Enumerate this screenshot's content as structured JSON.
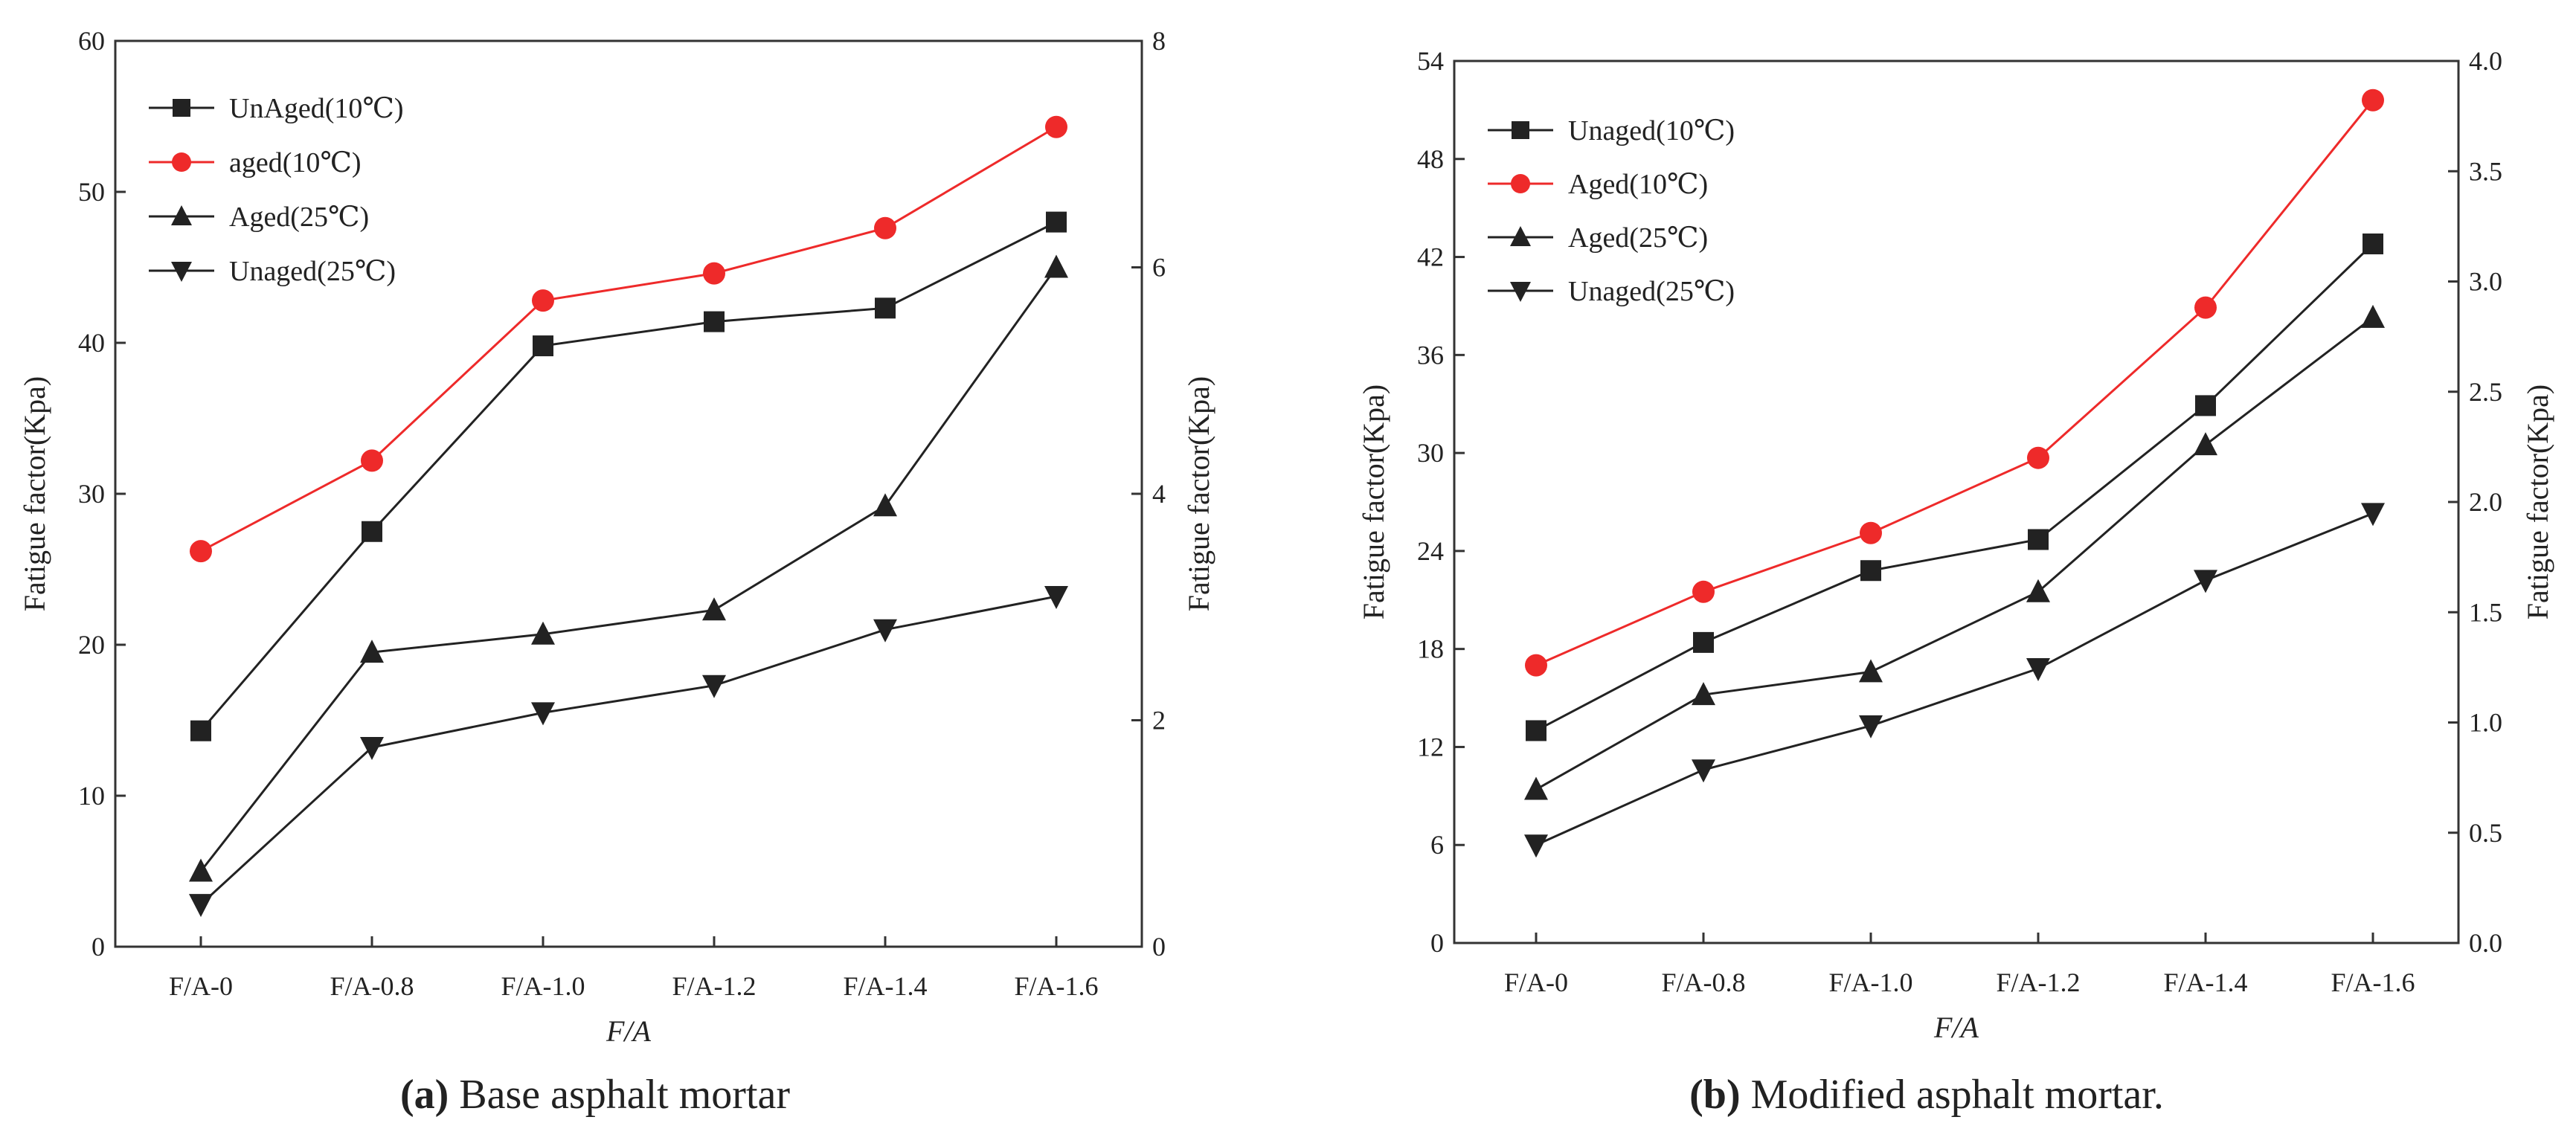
{
  "figure": {
    "colors": {
      "black": "#222222",
      "red": "#ee2a2a",
      "frame": "#333333"
    }
  },
  "chart_data": [
    {
      "type": "line",
      "panel": "a",
      "caption_letter": "(a)",
      "caption_text": " Base asphalt mortar",
      "categories": [
        "F/A-0",
        "F/A-0.8",
        "F/A-1.0",
        "F/A-1.2",
        "F/A-1.4",
        "F/A-1.6"
      ],
      "xlabel": "F/A",
      "ylabel": "Fatigue factor(Kpa)",
      "ylabel_right": "Fatigue factor(Kpa)",
      "ylim": [
        0,
        60
      ],
      "yticks": [
        "0",
        "10",
        "20",
        "30",
        "40",
        "50",
        "60"
      ],
      "ylim_right": [
        0,
        8
      ],
      "yticks_right": [
        "0",
        "2",
        "4",
        "6",
        "8"
      ],
      "legend_position": "top-left",
      "series": [
        {
          "name": "UnAged(10℃)",
          "marker": "square",
          "color": "#222222",
          "values": [
            14.3,
            27.5,
            39.8,
            41.4,
            42.3,
            48.0
          ]
        },
        {
          "name": "aged(10℃)",
          "marker": "circle",
          "color": "#ee2a2a",
          "values": [
            26.2,
            32.2,
            42.8,
            44.6,
            47.6,
            54.3
          ]
        },
        {
          "name": "Aged(25℃)",
          "marker": "triangle-up",
          "color": "#222222",
          "values": [
            5.0,
            19.5,
            20.7,
            22.3,
            29.2,
            45.0
          ]
        },
        {
          "name": "Unaged(25℃)",
          "marker": "triangle-down",
          "color": "#222222",
          "values": [
            2.8,
            13.2,
            15.5,
            17.3,
            21.0,
            23.2
          ]
        }
      ]
    },
    {
      "type": "line",
      "panel": "b",
      "caption_letter": "(b)",
      "caption_text": " Modified asphalt mortar.",
      "categories": [
        "F/A-0",
        "F/A-0.8",
        "F/A-1.0",
        "F/A-1.2",
        "F/A-1.4",
        "F/A-1.6"
      ],
      "xlabel": "F/A",
      "ylabel": "Fatigue factor(Kpa)",
      "ylabel_right": "Fatigue factor(Kpa)",
      "ylim": [
        0,
        54
      ],
      "yticks": [
        "0",
        "6",
        "12",
        "18",
        "24",
        "30",
        "36",
        "42",
        "48",
        "54"
      ],
      "ylim_right": [
        0,
        4
      ],
      "yticks_right": [
        "0.0",
        "0.5",
        "1.0",
        "1.5",
        "2.0",
        "2.5",
        "3.0",
        "3.5",
        "4.0"
      ],
      "legend_position": "top-left",
      "series": [
        {
          "name": "Unaged(10℃)",
          "marker": "square",
          "color": "#222222",
          "values": [
            13.0,
            18.4,
            22.8,
            24.7,
            32.9,
            42.8
          ]
        },
        {
          "name": "Aged(10℃)",
          "marker": "circle",
          "color": "#ee2a2a",
          "values": [
            17.0,
            21.5,
            25.1,
            29.7,
            38.9,
            51.6
          ]
        },
        {
          "name": "Aged(25℃)",
          "marker": "triangle-up",
          "color": "#222222",
          "values": [
            9.4,
            15.2,
            16.6,
            21.5,
            30.5,
            38.3
          ]
        },
        {
          "name": "Unaged(25℃)",
          "marker": "triangle-down",
          "color": "#222222",
          "values": [
            6.0,
            10.6,
            13.3,
            16.8,
            22.2,
            26.3
          ]
        }
      ]
    }
  ]
}
